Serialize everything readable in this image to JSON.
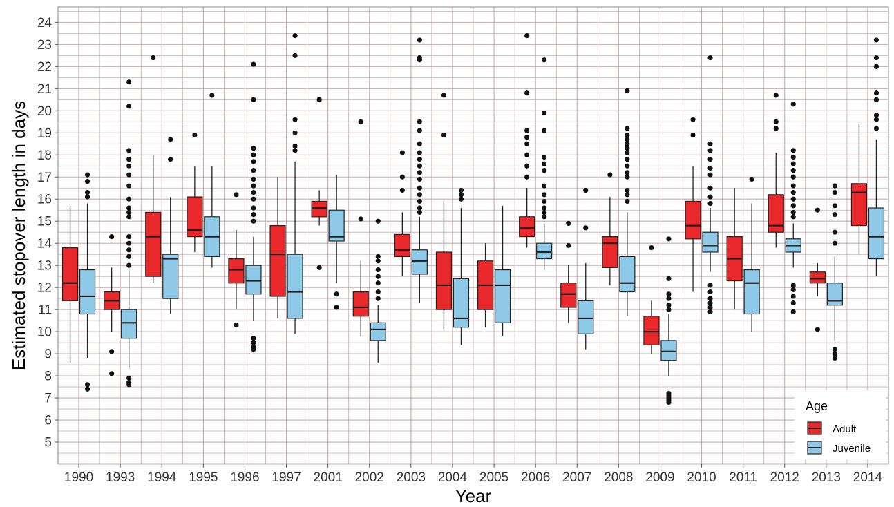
{
  "chart_data": {
    "type": "boxplot",
    "xlabel": "Year",
    "ylabel": "Estimated stopover length in days",
    "categories": [
      "1990",
      "1993",
      "1994",
      "1995",
      "1996",
      "1997",
      "2001",
      "2002",
      "2003",
      "2004",
      "2005",
      "2006",
      "2007",
      "2008",
      "2009",
      "2010",
      "2011",
      "2012",
      "2013",
      "2014"
    ],
    "yticks": [
      5,
      6,
      7,
      8,
      9,
      10,
      11,
      12,
      13,
      14,
      15,
      16,
      17,
      18,
      19,
      20,
      21,
      22,
      23,
      24
    ],
    "ylim": [
      4.0,
      24.7
    ],
    "grid": true,
    "legend": {
      "title": "Age",
      "position": "bottom-right",
      "entries": [
        "Adult",
        "Juvenile"
      ]
    },
    "colors": {
      "Adult": "#e8282a",
      "Juvenile": "#8ec9e8",
      "grid": "#c9a9a9",
      "panel": "#ffffff",
      "box_line": "#222222"
    },
    "series": [
      {
        "name": "Adult",
        "boxes": [
          {
            "q1": 11.4,
            "median": 12.2,
            "q3": 13.8,
            "whisker_low": 8.6,
            "whisker_high": 15.7,
            "outliers": []
          },
          {
            "q1": 11.0,
            "median": 11.4,
            "q3": 11.8,
            "whisker_low": 10.0,
            "whisker_high": 12.9,
            "outliers": [
              14.3,
              9.1,
              8.1
            ]
          },
          {
            "q1": 12.5,
            "median": 14.3,
            "q3": 15.4,
            "whisker_low": 12.2,
            "whisker_high": 18.0,
            "outliers": [
              22.4
            ]
          },
          {
            "q1": 14.3,
            "median": 14.6,
            "q3": 16.1,
            "whisker_low": 13.6,
            "whisker_high": 17.5,
            "outliers": [
              18.9
            ]
          },
          {
            "q1": 12.2,
            "median": 12.8,
            "q3": 13.3,
            "whisker_low": 11.0,
            "whisker_high": 14.6,
            "outliers": [
              16.2,
              10.3
            ]
          },
          {
            "q1": 11.6,
            "median": 13.5,
            "q3": 14.8,
            "whisker_low": 10.6,
            "whisker_high": 17.0,
            "outliers": []
          },
          {
            "q1": 15.2,
            "median": 15.6,
            "q3": 15.9,
            "whisker_low": 14.8,
            "whisker_high": 16.4,
            "outliers": [
              20.5,
              12.9
            ]
          },
          {
            "q1": 10.7,
            "median": 11.1,
            "q3": 11.8,
            "whisker_low": 9.8,
            "whisker_high": 13.2,
            "outliers": [
              19.5,
              15.1
            ]
          },
          {
            "q1": 13.4,
            "median": 13.7,
            "q3": 14.4,
            "whisker_low": 12.5,
            "whisker_high": 15.4,
            "outliers": [
              18.1,
              17.0,
              16.4
            ]
          },
          {
            "q1": 11.0,
            "median": 12.1,
            "q3": 13.6,
            "whisker_low": 10.1,
            "whisker_high": 15.9,
            "outliers": [
              20.7,
              18.9
            ]
          },
          {
            "q1": 11.0,
            "median": 12.1,
            "q3": 13.2,
            "whisker_low": 10.2,
            "whisker_high": 14.0,
            "outliers": []
          },
          {
            "q1": 14.3,
            "median": 14.7,
            "q3": 15.2,
            "whisker_low": 13.8,
            "whisker_high": 16.5,
            "outliers": [
              23.4,
              20.8,
              19.1,
              18.8,
              18.5,
              18.0,
              17.5,
              17.0
            ]
          },
          {
            "q1": 11.1,
            "median": 11.7,
            "q3": 12.2,
            "whisker_low": 10.4,
            "whisker_high": 13.0,
            "outliers": [
              14.9,
              13.9
            ]
          },
          {
            "q1": 12.9,
            "median": 14.0,
            "q3": 14.3,
            "whisker_low": 12.1,
            "whisker_high": 16.1,
            "outliers": [
              17.1
            ]
          },
          {
            "q1": 9.4,
            "median": 10.0,
            "q3": 10.7,
            "whisker_low": 9.0,
            "whisker_high": 11.4,
            "outliers": [
              13.8
            ]
          },
          {
            "q1": 14.2,
            "median": 14.8,
            "q3": 15.9,
            "whisker_low": 11.8,
            "whisker_high": 17.5,
            "outliers": [
              19.6,
              18.9
            ]
          },
          {
            "q1": 12.3,
            "median": 13.3,
            "q3": 14.3,
            "whisker_low": 11.0,
            "whisker_high": 16.5,
            "outliers": []
          },
          {
            "q1": 14.5,
            "median": 14.8,
            "q3": 16.2,
            "whisker_low": 13.8,
            "whisker_high": 18.1,
            "outliers": [
              20.7,
              19.5,
              19.2
            ]
          },
          {
            "q1": 12.2,
            "median": 12.4,
            "q3": 12.7,
            "whisker_low": 11.6,
            "whisker_high": 13.1,
            "outliers": [
              15.5,
              10.1
            ]
          },
          {
            "q1": 14.8,
            "median": 16.3,
            "q3": 16.7,
            "whisker_low": 13.5,
            "whisker_high": 19.4,
            "outliers": []
          }
        ]
      },
      {
        "name": "Juvenile",
        "boxes": [
          {
            "q1": 10.8,
            "median": 11.6,
            "q3": 12.8,
            "whisker_low": 8.8,
            "whisker_high": 15.8,
            "outliers": [
              17.1,
              16.8,
              16.3,
              16.1,
              7.6,
              7.4
            ]
          },
          {
            "q1": 9.7,
            "median": 10.4,
            "q3": 11.0,
            "whisker_low": 8.3,
            "whisker_high": 12.8,
            "outliers": [
              21.3,
              20.2,
              18.2,
              17.8,
              17.5,
              17.1,
              16.6,
              16.0,
              15.6,
              15.4,
              15.2,
              14.3,
              14.0,
              13.7,
              13.4,
              13.0,
              7.9,
              7.7,
              7.6
            ]
          },
          {
            "q1": 11.5,
            "median": 13.3,
            "q3": 13.5,
            "whisker_low": 10.8,
            "whisker_high": 16.1,
            "outliers": [
              18.7,
              17.8
            ]
          },
          {
            "q1": 13.4,
            "median": 14.3,
            "q3": 15.2,
            "whisker_low": 12.9,
            "whisker_high": 17.5,
            "outliers": [
              20.7
            ]
          },
          {
            "q1": 11.7,
            "median": 12.3,
            "q3": 13.0,
            "whisker_low": 10.5,
            "whisker_high": 14.3,
            "outliers": [
              22.1,
              20.5,
              18.3,
              18.0,
              17.7,
              17.3,
              16.9,
              16.6,
              16.3,
              16.0,
              15.6,
              15.3,
              15.0,
              9.7,
              9.5,
              9.3,
              9.2
            ]
          },
          {
            "q1": 10.6,
            "median": 11.8,
            "q3": 13.5,
            "whisker_low": 9.9,
            "whisker_high": 17.7,
            "outliers": [
              23.4,
              22.5,
              19.6,
              19.0,
              18.4,
              18.2
            ]
          },
          {
            "q1": 14.1,
            "median": 14.3,
            "q3": 15.5,
            "whisker_low": 12.2,
            "whisker_high": 17.1,
            "outliers": [
              11.7,
              11.1
            ]
          },
          {
            "q1": 9.6,
            "median": 10.1,
            "q3": 10.4,
            "whisker_low": 8.6,
            "whisker_high": 11.2,
            "outliers": [
              15.0,
              13.4,
              13.2,
              12.8,
              12.5,
              12.2,
              11.8,
              11.5
            ]
          },
          {
            "q1": 12.6,
            "median": 13.2,
            "q3": 13.7,
            "whisker_low": 11.3,
            "whisker_high": 15.2,
            "outliers": [
              23.2,
              22.4,
              22.3,
              19.5,
              19.1,
              18.5,
              18.1,
              17.8,
              17.5,
              17.2,
              16.9,
              16.5,
              16.2,
              15.9,
              15.6,
              15.4
            ]
          },
          {
            "q1": 10.2,
            "median": 10.6,
            "q3": 12.4,
            "whisker_low": 9.4,
            "whisker_high": 15.6,
            "outliers": [
              16.4,
              16.2,
              16.0
            ]
          },
          {
            "q1": 10.4,
            "median": 12.1,
            "q3": 12.8,
            "whisker_low": 9.8,
            "whisker_high": 15.7,
            "outliers": []
          },
          {
            "q1": 13.3,
            "median": 13.6,
            "q3": 14.0,
            "whisker_low": 12.8,
            "whisker_high": 14.9,
            "outliers": [
              22.3,
              19.9,
              19.1,
              17.9,
              17.6,
              17.3,
              16.6,
              16.2,
              15.9,
              15.6,
              15.4,
              15.2
            ]
          },
          {
            "q1": 9.9,
            "median": 10.6,
            "q3": 11.4,
            "whisker_low": 9.2,
            "whisker_high": 13.1,
            "outliers": [
              16.4,
              14.7
            ]
          },
          {
            "q1": 11.8,
            "median": 12.2,
            "q3": 13.4,
            "whisker_low": 10.7,
            "whisker_high": 15.4,
            "outliers": [
              20.9,
              19.2,
              18.9,
              18.7,
              18.5,
              18.3,
              18.1,
              17.8,
              17.5,
              17.2,
              17.0,
              16.4,
              16.2,
              15.9
            ]
          },
          {
            "q1": 8.7,
            "median": 9.1,
            "q3": 9.6,
            "whisker_low": 8.0,
            "whisker_high": 10.8,
            "outliers": [
              14.2,
              12.4,
              11.7,
              11.5,
              11.2,
              11.0,
              7.2,
              7.1,
              7.0,
              6.9,
              6.8
            ]
          },
          {
            "q1": 13.6,
            "median": 13.9,
            "q3": 14.5,
            "whisker_low": 12.7,
            "whisker_high": 15.6,
            "outliers": [
              22.4,
              18.5,
              18.2,
              17.8,
              17.4,
              17.1,
              16.5,
              16.1,
              15.8,
              12.1,
              11.8,
              11.5,
              11.3,
              11.1,
              10.9
            ]
          },
          {
            "q1": 10.8,
            "median": 12.2,
            "q3": 12.8,
            "whisker_low": 10.0,
            "whisker_high": 15.8,
            "outliers": [
              16.9
            ]
          },
          {
            "q1": 13.6,
            "median": 13.9,
            "q3": 14.2,
            "whisker_low": 12.9,
            "whisker_high": 14.9,
            "outliers": [
              20.3,
              18.2,
              17.9,
              17.6,
              17.3,
              17.0,
              16.6,
              16.3,
              16.0,
              15.7,
              15.4,
              15.2,
              12.1,
              11.9,
              11.6,
              11.3,
              10.9
            ]
          },
          {
            "q1": 11.2,
            "median": 11.4,
            "q3": 12.2,
            "whisker_low": 9.6,
            "whisker_high": 13.4,
            "outliers": [
              16.6,
              16.3,
              15.7,
              15.3,
              14.5,
              14.0,
              9.2,
              9.0,
              8.8
            ]
          },
          {
            "q1": 13.3,
            "median": 14.3,
            "q3": 15.6,
            "whisker_low": 12.5,
            "whisker_high": 18.7,
            "outliers": [
              23.2,
              22.4,
              22.0,
              20.8,
              20.5,
              19.8,
              19.6,
              19.2
            ]
          }
        ]
      }
    ]
  }
}
